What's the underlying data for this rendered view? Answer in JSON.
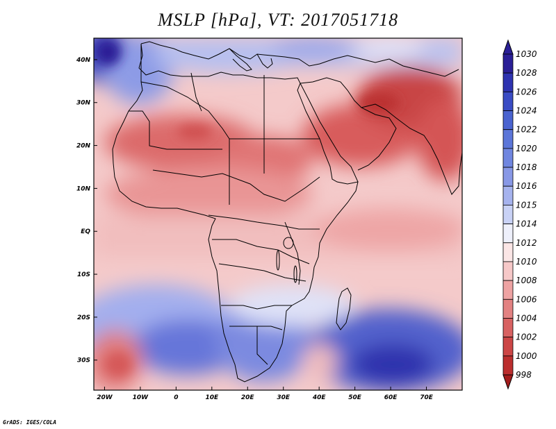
{
  "title": "MSLP [hPa], VT: 2017051718",
  "credit": "GrADS: IGES/COLA",
  "map": {
    "variable": "MSLP",
    "units": "hPa",
    "valid_time": "2017051718",
    "lon_range": [
      -23,
      80
    ],
    "lat_range": [
      -37,
      45
    ],
    "lat_ticks": [
      {
        "value": 40,
        "label": "40N"
      },
      {
        "value": 30,
        "label": "30N"
      },
      {
        "value": 20,
        "label": "20N"
      },
      {
        "value": 10,
        "label": "10N"
      },
      {
        "value": 0,
        "label": "EQ"
      },
      {
        "value": -10,
        "label": "10S"
      },
      {
        "value": -20,
        "label": "20S"
      },
      {
        "value": -30,
        "label": "30S"
      }
    ],
    "lon_ticks": [
      {
        "value": -20,
        "label": "20W"
      },
      {
        "value": -10,
        "label": "10W"
      },
      {
        "value": 0,
        "label": "0"
      },
      {
        "value": 10,
        "label": "10E"
      },
      {
        "value": 20,
        "label": "20E"
      },
      {
        "value": 30,
        "label": "30E"
      },
      {
        "value": 40,
        "label": "40E"
      },
      {
        "value": 50,
        "label": "50E"
      },
      {
        "value": 60,
        "label": "60E"
      },
      {
        "value": 70,
        "label": "70E"
      }
    ],
    "pressure_features": [
      {
        "type": "high",
        "name": "south-indian-ocean-high",
        "lon": 60,
        "lat": -32,
        "mslp": 1028
      },
      {
        "type": "high",
        "name": "south-atlantic-high",
        "lon": 0,
        "lat": -28,
        "mslp": 1022
      },
      {
        "type": "high",
        "name": "mediterranean-high",
        "lon": 15,
        "lat": 40,
        "mslp": 1016
      },
      {
        "type": "high",
        "name": "atlantic-high-nw",
        "lon": -22,
        "lat": 42,
        "mslp": 1024
      },
      {
        "type": "low",
        "name": "saharan-heat-low",
        "lon": 5,
        "lat": 23,
        "mslp": 1004
      },
      {
        "type": "low",
        "name": "arabian-heat-low",
        "lon": 48,
        "lat": 22,
        "mslp": 1004
      },
      {
        "type": "low",
        "name": "iran-pakistan-low",
        "lon": 62,
        "lat": 30,
        "mslp": 1000
      },
      {
        "type": "low",
        "name": "south-atlantic-low",
        "lon": -15,
        "lat": -33,
        "mslp": 1006
      }
    ]
  },
  "colorbar": {
    "labels": [
      "1030",
      "1028",
      "1026",
      "1024",
      "1022",
      "1020",
      "1018",
      "1016",
      "1015",
      "1014",
      "1012",
      "1010",
      "1008",
      "1006",
      "1004",
      "1002",
      "1000",
      "998"
    ],
    "colors": [
      "#2a1f96",
      "#2e33b0",
      "#3a4cc4",
      "#4a63d0",
      "#5c76d9",
      "#7086e0",
      "#8898e6",
      "#a6b3ee",
      "#c9d2f6",
      "#eef0fb",
      "#fbe6e6",
      "#f6c8c8",
      "#eea3a3",
      "#e38282",
      "#d86262",
      "#cc4646",
      "#bb2e2e",
      "#a31c1c"
    ]
  }
}
